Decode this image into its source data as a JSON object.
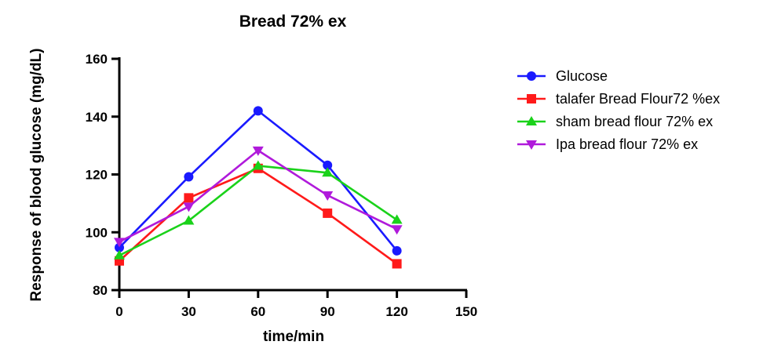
{
  "chart_data": {
    "type": "line",
    "title": "Bread 72% ex",
    "xlabel": "time/min",
    "ylabel": "Response of blood glucose (mg/dL)",
    "x": [
      0,
      30,
      60,
      90,
      120
    ],
    "xlim": [
      0,
      150
    ],
    "ylim": [
      80,
      160
    ],
    "x_ticks": [
      "0",
      "30",
      "60",
      "90",
      "120",
      "150"
    ],
    "y_ticks": [
      "80",
      "100",
      "120",
      "140",
      "160"
    ],
    "grid": false,
    "legend_position": "right",
    "series": [
      {
        "name": "Glucose",
        "color": "#1a1aff",
        "marker": "circle",
        "values": [
          94.7,
          119.2,
          142.0,
          123.2,
          93.6
        ]
      },
      {
        "name": "talafer Bread Flour72 %ex",
        "color": "#ff1a1a",
        "marker": "square",
        "values": [
          90.1,
          111.9,
          122.1,
          106.6,
          89.1
        ]
      },
      {
        "name": "sham bread flour 72% ex",
        "color": "#1ad21a",
        "marker": "triangle-up",
        "values": [
          92.0,
          104.0,
          123.0,
          120.6,
          104.3
        ]
      },
      {
        "name": "Ipa bread flour 72% ex",
        "color": "#b01adb",
        "marker": "triangle-down",
        "values": [
          96.7,
          108.9,
          128.3,
          112.8,
          101.1
        ]
      }
    ]
  }
}
